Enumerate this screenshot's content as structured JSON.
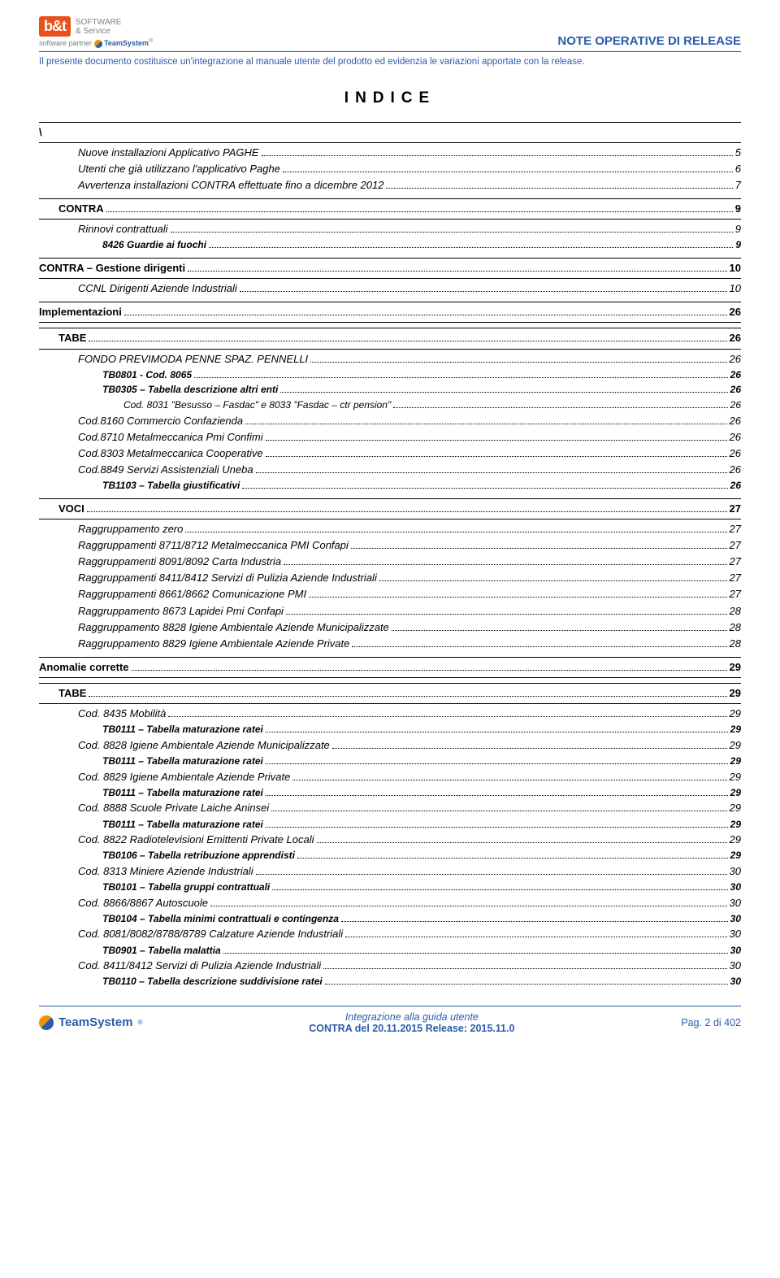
{
  "header": {
    "logo_brand": "b&t",
    "logo_line1": "SOFTWARE",
    "logo_line2": "& Service",
    "logo_sub_prefix": "software partner",
    "logo_sub_brand": "TeamSystem",
    "title": "NOTE OPERATIVE DI RELEASE",
    "subtitle": "Il presente documento costituisce un'integrazione al manuale utente del prodotto ed evidenzia le variazioni apportate con la release."
  },
  "index_title": "INDICE",
  "toc": [
    {
      "lvl": 0,
      "bar": true,
      "label": "\\",
      "page": ""
    },
    {
      "lvl": 2,
      "label": "Nuove installazioni Applicativo PAGHE",
      "page": "5"
    },
    {
      "lvl": 2,
      "label": "Utenti che già utilizzano l'applicativo Paghe",
      "page": "6"
    },
    {
      "lvl": 2,
      "label": "Avvertenza installazioni CONTRA effettuate fino a dicembre 2012",
      "page": "7"
    },
    {
      "lvl": 1,
      "bar": true,
      "label": "CONTRA",
      "page": "9"
    },
    {
      "lvl": 2,
      "label": "Rinnovi contrattuali",
      "page": "9"
    },
    {
      "lvl": 3,
      "label": "8426 Guardie ai fuochi",
      "page": "9"
    },
    {
      "lvl": 0,
      "bar": true,
      "label": "CONTRA – Gestione dirigenti",
      "page": "10"
    },
    {
      "lvl": 2,
      "label": "CCNL Dirigenti Aziende Industriali",
      "page": "10"
    },
    {
      "lvl": 0,
      "bar": true,
      "label": "Implementazioni",
      "page": "26"
    },
    {
      "lvl": 1,
      "bar": true,
      "label": "TABE",
      "page": "26"
    },
    {
      "lvl": 2,
      "label": "FONDO PREVIMODA PENNE SPAZ. PENNELLI",
      "page": "26"
    },
    {
      "lvl": 3,
      "label": "TB0801 - Cod. 8065",
      "page": "26"
    },
    {
      "lvl": 3,
      "label": "TB0305 – Tabella descrizione altri enti",
      "page": "26"
    },
    {
      "lvl": 4,
      "label": "Cod. 8031 \"Besusso – Fasdac\" e 8033 \"Fasdac – ctr pension\"",
      "page": "26"
    },
    {
      "lvl": 2,
      "label": "Cod.8160 Commercio Confazienda",
      "page": "26"
    },
    {
      "lvl": 2,
      "label": "Cod.8710 Metalmeccanica Pmi Confimi",
      "page": "26"
    },
    {
      "lvl": 2,
      "label": "Cod.8303 Metalmeccanica Cooperative",
      "page": "26"
    },
    {
      "lvl": 2,
      "label": "Cod.8849 Servizi Assistenziali Uneba",
      "page": "26"
    },
    {
      "lvl": 3,
      "label": "TB1103 – Tabella giustificativi",
      "page": "26"
    },
    {
      "lvl": 1,
      "bar": true,
      "label": "VOCI",
      "page": "27"
    },
    {
      "lvl": 2,
      "label": "Raggruppamento zero",
      "page": "27"
    },
    {
      "lvl": 2,
      "label": "Raggruppamenti 8711/8712 Metalmeccanica PMI Confapi",
      "page": "27"
    },
    {
      "lvl": 2,
      "label": "Raggruppamenti 8091/8092 Carta Industria",
      "page": "27"
    },
    {
      "lvl": 2,
      "label": "Raggruppamenti 8411/8412 Servizi di Pulizia Aziende Industriali",
      "page": "27"
    },
    {
      "lvl": 2,
      "label": "Raggruppamenti 8661/8662 Comunicazione PMI",
      "page": "27"
    },
    {
      "lvl": 2,
      "label": "Raggruppamento 8673 Lapidei Pmi Confapi",
      "page": "28"
    },
    {
      "lvl": 2,
      "label": "Raggruppamento 8828 Igiene Ambientale Aziende Municipalizzate",
      "page": "28"
    },
    {
      "lvl": 2,
      "label": "Raggruppamento 8829 Igiene Ambientale Aziende Private",
      "page": "28"
    },
    {
      "lvl": 0,
      "bar": true,
      "label": "Anomalie corrette",
      "page": "29"
    },
    {
      "lvl": 1,
      "bar": true,
      "label": "TABE",
      "page": "29"
    },
    {
      "lvl": 2,
      "label": "Cod. 8435 Mobilità",
      "page": "29"
    },
    {
      "lvl": 3,
      "label": "TB0111 – Tabella maturazione ratei",
      "page": "29"
    },
    {
      "lvl": 2,
      "label": "Cod. 8828 Igiene Ambientale Aziende Municipalizzate",
      "page": "29"
    },
    {
      "lvl": 3,
      "label": "TB0111 – Tabella maturazione ratei",
      "page": "29"
    },
    {
      "lvl": 2,
      "label": "Cod. 8829 Igiene Ambientale Aziende Private",
      "page": "29"
    },
    {
      "lvl": 3,
      "label": "TB0111 – Tabella maturazione ratei",
      "page": "29"
    },
    {
      "lvl": 2,
      "label": "Cod. 8888 Scuole Private Laiche Aninsei",
      "page": "29"
    },
    {
      "lvl": 3,
      "label": "TB0111 – Tabella maturazione ratei",
      "page": "29"
    },
    {
      "lvl": 2,
      "label": "Cod. 8822 Radiotelevisioni Emittenti Private Locali",
      "page": "29"
    },
    {
      "lvl": 3,
      "label": "TB0106 – Tabella retribuzione apprendisti",
      "page": "29"
    },
    {
      "lvl": 2,
      "label": "Cod. 8313 Miniere Aziende Industriali",
      "page": "30"
    },
    {
      "lvl": 3,
      "label": "TB0101 – Tabella gruppi contrattuali",
      "page": "30"
    },
    {
      "lvl": 2,
      "label": "Cod. 8866/8867 Autoscuole",
      "page": "30"
    },
    {
      "lvl": 3,
      "label": "TB0104 – Tabella minimi contrattuali e contingenza",
      "page": "30"
    },
    {
      "lvl": 2,
      "label": "Cod. 8081/8082/8788/8789 Calzature Aziende Industriali",
      "page": "30"
    },
    {
      "lvl": 3,
      "label": "TB0901 – Tabella malattia",
      "page": "30"
    },
    {
      "lvl": 2,
      "label": "Cod. 8411/8412 Servizi di Pulizia Aziende Industriali",
      "page": "30"
    },
    {
      "lvl": 3,
      "label": "TB0110 – Tabella descrizione suddivisione ratei",
      "page": "30"
    }
  ],
  "footer": {
    "brand": "TeamSystem",
    "center_line1": "Integrazione alla guida utente",
    "center_line2": "CONTRA del 20.11.2015 Release: 2015.11.0",
    "right": "Pag. 2 di 402"
  }
}
